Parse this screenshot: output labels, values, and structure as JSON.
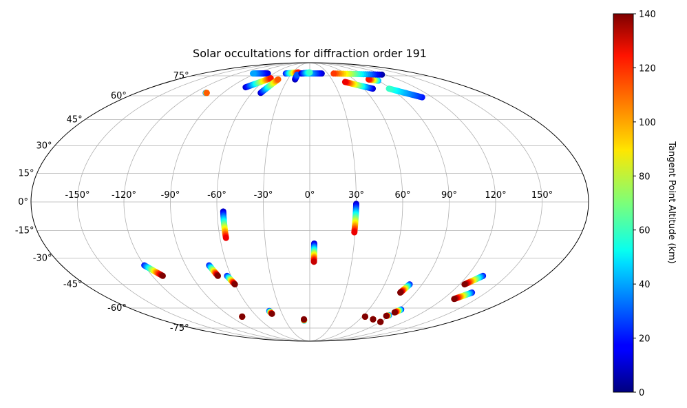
{
  "chart_data": {
    "type": "scatter",
    "title": "Solar occultations for diffraction order 191",
    "projection": "mollweide-like (ellipse)",
    "grid": true,
    "xlabel": "",
    "ylabel": "",
    "lon_ticks": [
      -150,
      -120,
      -90,
      -60,
      -30,
      0,
      30,
      60,
      90,
      120,
      150
    ],
    "lon_tick_labels": [
      "-150°",
      "-120°",
      "-90°",
      "-60°",
      "-30°",
      "0°",
      "30°",
      "60°",
      "90°",
      "120°",
      "150°"
    ],
    "lat_ticks": [
      -75,
      -60,
      -45,
      -30,
      -15,
      0,
      15,
      30,
      45,
      60,
      75
    ],
    "lat_tick_labels": [
      "-75°",
      "-60°",
      "-45°",
      "-30°",
      "-15°",
      "0°",
      "15°",
      "30°",
      "45°",
      "60°",
      "75°"
    ],
    "colorbar": {
      "label": "Tangent Point Altitude (km)",
      "range": [
        0,
        140
      ],
      "ticks": [
        0,
        20,
        40,
        60,
        80,
        100,
        120,
        140
      ],
      "tick_labels": [
        "0",
        "20",
        "40",
        "60",
        "80",
        "100",
        "120",
        "140"
      ],
      "colormap": "jet"
    },
    "series": [
      {
        "lon_start": -56,
        "lat_start": -5,
        "alt_start": 10,
        "lon_end": -56,
        "lat_end": -19,
        "alt_end": 125
      },
      {
        "lon_start": 30,
        "lat_start": -1,
        "alt_start": 10,
        "lon_end": 29.5,
        "lat_end": -16,
        "alt_end": 125
      },
      {
        "lon_start": 3,
        "lat_start": -22,
        "alt_start": 10,
        "lon_end": 3,
        "lat_end": -32,
        "alt_end": 130
      },
      {
        "lon_start": -120,
        "lat_start": -34,
        "alt_start": 20,
        "lon_end": -112,
        "lat_end": -40,
        "alt_end": 140
      },
      {
        "lon_start": -73,
        "lat_start": -34,
        "alt_start": 20,
        "lon_end": -70,
        "lat_end": -40,
        "alt_end": 140
      },
      {
        "lon_start": -63,
        "lat_start": -40,
        "alt_start": 20,
        "lon_end": -60,
        "lat_end": -45,
        "alt_end": 140
      },
      {
        "lon_start": 132,
        "lat_start": -40,
        "alt_start": 20,
        "lon_end": 124,
        "lat_end": -45,
        "alt_end": 140
      },
      {
        "lon_start": 138,
        "lat_start": -50,
        "alt_start": 20,
        "lon_end": 130,
        "lat_end": -54,
        "alt_end": 140
      },
      {
        "lon_start": 80,
        "lat_start": -45,
        "alt_start": 20,
        "lon_end": 77,
        "lat_end": -50,
        "alt_end": 140
      },
      {
        "lon_start": 93,
        "lat_start": -61,
        "alt_start": 20,
        "lon_end": 90,
        "lat_end": -63,
        "alt_end": 140
      },
      {
        "lon_start": 88,
        "lat_start": -65,
        "alt_start": 20,
        "lon_end": 86,
        "lat_end": -65.5,
        "alt_end": 140
      },
      {
        "lon_start": 90,
        "lat_start": -70,
        "alt_start": 20,
        "lon_end": 90,
        "lat_end": -70,
        "alt_end": 140
      },
      {
        "lon_start": 76,
        "lat_start": -68,
        "alt_start": 40,
        "lon_end": 76,
        "lat_end": -68,
        "alt_end": 140
      },
      {
        "lon_start": 63,
        "lat_start": -66,
        "alt_start": 30,
        "lon_end": 63,
        "lat_end": -66,
        "alt_end": 140
      },
      {
        "lon_start": -42,
        "lat_start": -62,
        "alt_start": 20,
        "lon_end": -41,
        "lat_end": -64,
        "alt_end": 140
      },
      {
        "lon_start": -77,
        "lat_start": -66,
        "alt_start": 30,
        "lon_end": -77,
        "lat_end": -66,
        "alt_end": 140
      },
      {
        "lon_start": -7,
        "lat_start": -69,
        "alt_start": 40,
        "lon_end": -7,
        "lat_end": -68,
        "alt_end": 140
      },
      {
        "lon_start": 110,
        "lat_start": 59,
        "alt_start": 20,
        "lon_end": 88,
        "lat_end": 65,
        "alt_end": 60
      },
      {
        "lon_start": 70,
        "lat_start": 65,
        "alt_start": 10,
        "lon_end": 45,
        "lat_end": 70,
        "alt_end": 125
      },
      {
        "lon_start": 90,
        "lat_start": 71,
        "alt_start": 40,
        "lon_end": 80,
        "lat_end": 72,
        "alt_end": 120
      },
      {
        "lon_start": 115,
        "lat_start": 76,
        "alt_start": 5,
        "lon_end": 40,
        "lat_end": 77,
        "alt_end": 115
      },
      {
        "lon_start": 20,
        "lat_start": 77,
        "alt_start": 10,
        "lon_end": -20,
        "lat_end": 77,
        "alt_end": 70
      },
      {
        "lon_start": -40,
        "lat_start": 77,
        "alt_start": 20,
        "lon_end": -20,
        "lat_end": 78,
        "alt_end": 120
      },
      {
        "lon_start": -70,
        "lat_start": 77,
        "alt_start": 10,
        "lon_end": -95,
        "lat_end": 77,
        "alt_end": 40
      },
      {
        "lon_start": -73,
        "lat_start": 66,
        "alt_start": 10,
        "lon_end": -55,
        "lat_end": 73,
        "alt_end": 120
      },
      {
        "lon_start": -51,
        "lat_start": 62,
        "alt_start": 10,
        "lon_end": -43,
        "lat_end": 72,
        "alt_end": 110
      },
      {
        "lon_start": -20,
        "lat_start": 72,
        "alt_start": 5,
        "lon_end": -20,
        "lat_end": 76,
        "alt_end": 30
      },
      {
        "lon_start": -14,
        "lat_start": 77,
        "alt_start": 10,
        "lon_end": 0,
        "lat_end": 78,
        "alt_end": 60
      },
      {
        "lon_start": -108,
        "lat_start": 62,
        "alt_start": 10,
        "lon_end": -107,
        "lat_end": 62,
        "alt_end": 110
      }
    ]
  }
}
